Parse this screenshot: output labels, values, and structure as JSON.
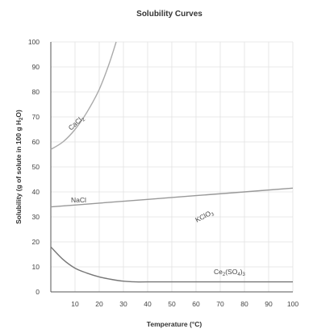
{
  "chart_data": {
    "type": "line",
    "title": "Solubility Curves",
    "xlabel": "Temperature (°C)",
    "ylabel_parts": [
      "Solubility (g of solute in 100 g H",
      "2",
      "O)"
    ],
    "xlim": [
      0,
      100
    ],
    "ylim": [
      0,
      100
    ],
    "x_ticks": [
      10,
      20,
      30,
      40,
      50,
      60,
      70,
      80,
      90,
      100
    ],
    "y_ticks": [
      0,
      10,
      20,
      30,
      40,
      50,
      60,
      70,
      80,
      90,
      100
    ],
    "grid": true,
    "colors": {
      "CaCl2": "#aaaaaa",
      "NaCl": "#999999",
      "KClO3": "#bbbbbb",
      "Ce2(SO4)3": "#777777",
      "grid": "#e2e2e2",
      "axis": "#555555"
    },
    "series": [
      {
        "key": "CaCl2",
        "label_parts": [
          "CaCl",
          "2",
          ""
        ],
        "x": [
          0,
          5,
          10,
          15,
          20,
          24,
          27
        ],
        "y": [
          57,
          60,
          65,
          72,
          81,
          91,
          100
        ]
      },
      {
        "key": "NaCl",
        "label_parts": [
          "NaCl",
          "",
          ""
        ],
        "x": [
          0,
          20,
          40,
          60,
          80,
          100
        ],
        "y": [
          34,
          35.5,
          37,
          38.5,
          40,
          41.5
        ]
      },
      {
        "key": "KClO3",
        "label_parts": [
          "KClO",
          "3",
          ""
        ],
        "x": [],
        "y": []
      },
      {
        "key": "Ce2(SO4)3",
        "label_parts": [
          "Ce",
          "2",
          "(SO",
          "4",
          ")",
          "3"
        ],
        "x": [
          0,
          5,
          10,
          15,
          20,
          25,
          30,
          35,
          40,
          60,
          80,
          100
        ],
        "y": [
          18,
          13,
          9.5,
          7.5,
          6,
          5,
          4.3,
          4,
          4,
          4,
          4,
          4
        ]
      }
    ]
  }
}
